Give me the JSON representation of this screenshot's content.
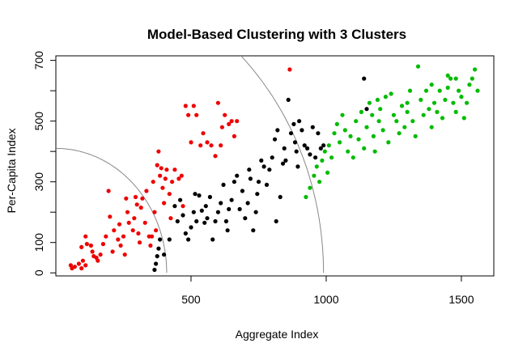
{
  "chart_data": {
    "type": "scatter",
    "title": "Model-Based Clustering with 3 Clusters",
    "xlabel": "Aggregate Index",
    "ylabel": "Per-Capita Index",
    "xlim": [
      0,
      1620
    ],
    "ylim": [
      -10,
      715
    ],
    "xticks": [
      500,
      1000,
      1500
    ],
    "yticks": [
      0,
      100,
      300,
      500,
      700
    ],
    "ytick_labels_shown": [
      0,
      100,
      300,
      500,
      700
    ],
    "grid": false,
    "legend": "none",
    "boundaries": [
      {
        "center": [
          0,
          0
        ],
        "radius": 410,
        "color": "#888888"
      },
      {
        "center": [
          0,
          0
        ],
        "radius": 990,
        "color": "#888888"
      }
    ],
    "series": [
      {
        "color": "#ee0000",
        "points": [
          [
            55,
            25
          ],
          [
            60,
            15
          ],
          [
            70,
            20
          ],
          [
            85,
            30
          ],
          [
            95,
            15
          ],
          [
            100,
            40
          ],
          [
            110,
            25
          ],
          [
            95,
            85
          ],
          [
            110,
            120
          ],
          [
            115,
            95
          ],
          [
            130,
            90
          ],
          [
            135,
            70
          ],
          [
            140,
            55
          ],
          [
            150,
            50
          ],
          [
            155,
            40
          ],
          [
            165,
            60
          ],
          [
            175,
            95
          ],
          [
            185,
            120
          ],
          [
            195,
            270
          ],
          [
            200,
            185
          ],
          [
            210,
            70
          ],
          [
            215,
            140
          ],
          [
            230,
            110
          ],
          [
            235,
            160
          ],
          [
            240,
            90
          ],
          [
            250,
            120
          ],
          [
            255,
            60
          ],
          [
            260,
            245
          ],
          [
            265,
            200
          ],
          [
            270,
            165
          ],
          [
            285,
            140
          ],
          [
            290,
            180
          ],
          [
            295,
            250
          ],
          [
            300,
            225
          ],
          [
            305,
            130
          ],
          [
            310,
            100
          ],
          [
            315,
            215
          ],
          [
            320,
            245
          ],
          [
            330,
            165
          ],
          [
            335,
            270
          ],
          [
            345,
            120
          ],
          [
            350,
            90
          ],
          [
            355,
            120
          ],
          [
            360,
            300
          ],
          [
            365,
            200
          ],
          [
            370,
            140
          ],
          [
            375,
            355
          ],
          [
            380,
            400
          ],
          [
            385,
            320
          ],
          [
            390,
            345
          ],
          [
            395,
            280
          ],
          [
            400,
            230
          ],
          [
            405,
            310
          ],
          [
            410,
            340
          ],
          [
            420,
            260
          ],
          [
            425,
            180
          ],
          [
            430,
            300
          ],
          [
            440,
            340
          ],
          [
            455,
            310
          ],
          [
            465,
            320
          ],
          [
            470,
            220
          ],
          [
            480,
            550
          ],
          [
            490,
            520
          ],
          [
            500,
            430
          ],
          [
            510,
            550
          ],
          [
            520,
            520
          ],
          [
            535,
            420
          ],
          [
            545,
            460
          ],
          [
            560,
            430
          ],
          [
            575,
            420
          ],
          [
            590,
            385
          ],
          [
            600,
            560
          ],
          [
            610,
            420
          ],
          [
            615,
            480
          ],
          [
            625,
            520
          ],
          [
            640,
            490
          ],
          [
            650,
            500
          ],
          [
            660,
            450
          ],
          [
            670,
            500
          ],
          [
            865,
            670
          ]
        ]
      },
      {
        "color": "#000000",
        "points": [
          [
            365,
            10
          ],
          [
            370,
            30
          ],
          [
            375,
            55
          ],
          [
            380,
            80
          ],
          [
            385,
            110
          ],
          [
            400,
            60
          ],
          [
            420,
            110
          ],
          [
            440,
            220
          ],
          [
            450,
            170
          ],
          [
            460,
            240
          ],
          [
            470,
            190
          ],
          [
            480,
            130
          ],
          [
            490,
            110
          ],
          [
            500,
            150
          ],
          [
            510,
            200
          ],
          [
            515,
            260
          ],
          [
            520,
            170
          ],
          [
            530,
            255
          ],
          [
            540,
            205
          ],
          [
            550,
            165
          ],
          [
            555,
            220
          ],
          [
            560,
            180
          ],
          [
            570,
            250
          ],
          [
            580,
            110
          ],
          [
            590,
            170
          ],
          [
            600,
            200
          ],
          [
            610,
            230
          ],
          [
            620,
            290
          ],
          [
            630,
            170
          ],
          [
            635,
            140
          ],
          [
            640,
            210
          ],
          [
            650,
            240
          ],
          [
            660,
            300
          ],
          [
            670,
            320
          ],
          [
            680,
            210
          ],
          [
            690,
            270
          ],
          [
            700,
            180
          ],
          [
            710,
            230
          ],
          [
            715,
            340
          ],
          [
            720,
            310
          ],
          [
            730,
            140
          ],
          [
            740,
            200
          ],
          [
            745,
            260
          ],
          [
            750,
            300
          ],
          [
            760,
            370
          ],
          [
            770,
            350
          ],
          [
            780,
            290
          ],
          [
            790,
            340
          ],
          [
            800,
            380
          ],
          [
            810,
            440
          ],
          [
            815,
            170
          ],
          [
            820,
            470
          ],
          [
            830,
            250
          ],
          [
            840,
            360
          ],
          [
            845,
            410
          ],
          [
            850,
            370
          ],
          [
            860,
            570
          ],
          [
            870,
            460
          ],
          [
            880,
            490
          ],
          [
            885,
            430
          ],
          [
            890,
            400
          ],
          [
            895,
            350
          ],
          [
            900,
            500
          ],
          [
            910,
            470
          ],
          [
            920,
            420
          ],
          [
            930,
            410
          ],
          [
            940,
            390
          ],
          [
            950,
            480
          ],
          [
            960,
            380
          ],
          [
            970,
            460
          ],
          [
            980,
            410
          ],
          [
            990,
            420
          ],
          [
            1140,
            640
          ],
          [
            1150,
            540
          ]
        ]
      },
      {
        "color": "#00bb00",
        "points": [
          [
            925,
            250
          ],
          [
            940,
            280
          ],
          [
            955,
            320
          ],
          [
            965,
            350
          ],
          [
            975,
            300
          ],
          [
            985,
            370
          ],
          [
            995,
            400
          ],
          [
            1005,
            330
          ],
          [
            1010,
            420
          ],
          [
            1020,
            380
          ],
          [
            1030,
            460
          ],
          [
            1040,
            490
          ],
          [
            1050,
            430
          ],
          [
            1060,
            520
          ],
          [
            1070,
            470
          ],
          [
            1080,
            400
          ],
          [
            1090,
            450
          ],
          [
            1100,
            380
          ],
          [
            1110,
            500
          ],
          [
            1120,
            440
          ],
          [
            1130,
            530
          ],
          [
            1140,
            410
          ],
          [
            1150,
            480
          ],
          [
            1160,
            560
          ],
          [
            1170,
            520
          ],
          [
            1175,
            450
          ],
          [
            1180,
            400
          ],
          [
            1190,
            570
          ],
          [
            1195,
            500
          ],
          [
            1200,
            540
          ],
          [
            1210,
            470
          ],
          [
            1220,
            580
          ],
          [
            1230,
            430
          ],
          [
            1240,
            590
          ],
          [
            1250,
            520
          ],
          [
            1260,
            500
          ],
          [
            1270,
            460
          ],
          [
            1280,
            550
          ],
          [
            1290,
            480
          ],
          [
            1300,
            530
          ],
          [
            1310,
            600
          ],
          [
            1320,
            500
          ],
          [
            1330,
            450
          ],
          [
            1340,
            680
          ],
          [
            1350,
            570
          ],
          [
            1360,
            520
          ],
          [
            1370,
            600
          ],
          [
            1380,
            540
          ],
          [
            1390,
            480
          ],
          [
            1400,
            560
          ],
          [
            1410,
            530
          ],
          [
            1420,
            600
          ],
          [
            1430,
            510
          ],
          [
            1440,
            570
          ],
          [
            1450,
            610
          ],
          [
            1460,
            640
          ],
          [
            1470,
            560
          ],
          [
            1480,
            530
          ],
          [
            1490,
            600
          ],
          [
            1500,
            580
          ],
          [
            1510,
            510
          ],
          [
            1520,
            560
          ],
          [
            1530,
            620
          ],
          [
            1540,
            640
          ],
          [
            1550,
            670
          ],
          [
            1560,
            600
          ],
          [
            1450,
            650
          ],
          [
            1480,
            640
          ],
          [
            1390,
            620
          ],
          [
            1300,
            560
          ]
        ]
      }
    ]
  }
}
